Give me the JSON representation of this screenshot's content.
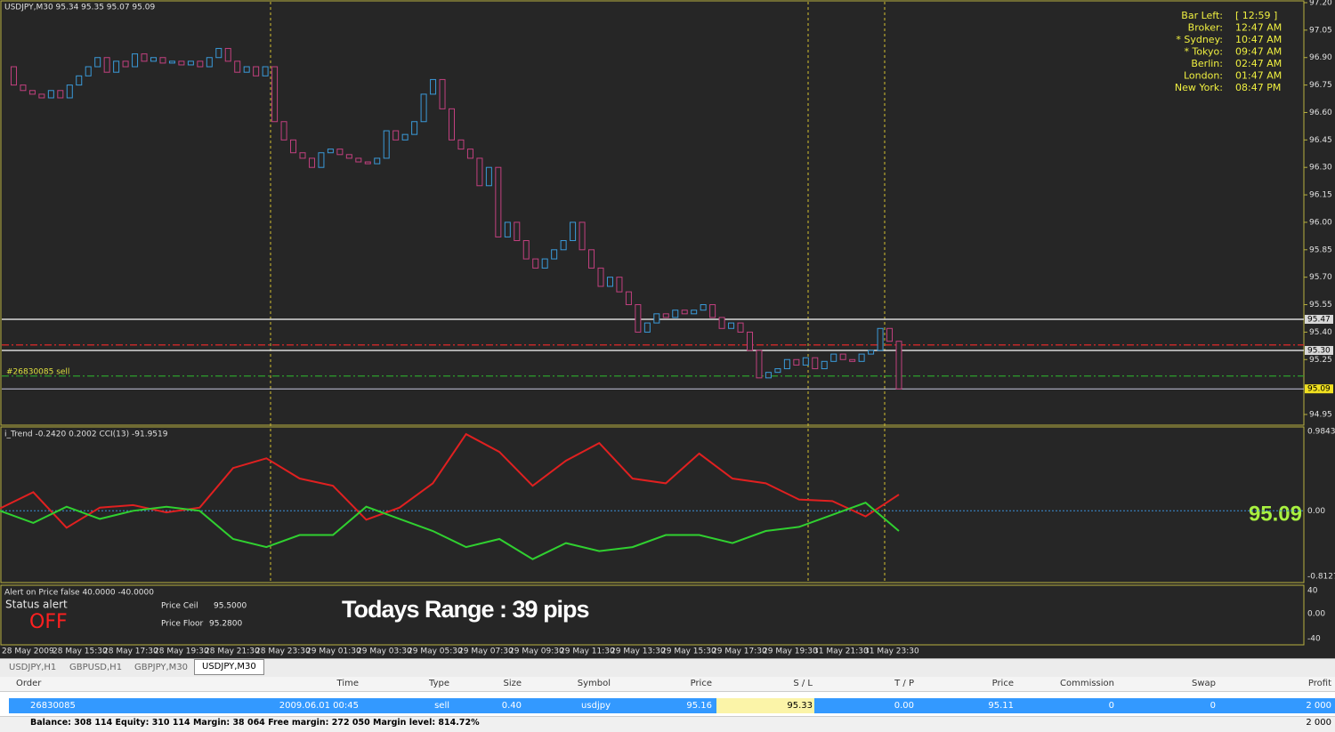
{
  "main_chart": {
    "header": "USDJPY,M30  95.34 95.35 95.07 95.09",
    "order_label": "#26830085 sell",
    "ylim": [
      94.9,
      97.2
    ],
    "price_ticks": [
      {
        "value": 97.2,
        "label": "97.20"
      },
      {
        "value": 97.05,
        "label": "97.05"
      },
      {
        "value": 96.9,
        "label": "96.90"
      },
      {
        "value": 96.75,
        "label": "96.75"
      },
      {
        "value": 96.6,
        "label": "96.60"
      },
      {
        "value": 96.45,
        "label": "96.45"
      },
      {
        "value": 96.3,
        "label": "96.30"
      },
      {
        "value": 96.15,
        "label": "96.15"
      },
      {
        "value": 96.0,
        "label": "96.00"
      },
      {
        "value": 95.85,
        "label": "95.85"
      },
      {
        "value": 95.7,
        "label": "95.70"
      },
      {
        "value": 95.55,
        "label": "95.55"
      },
      {
        "value": 95.4,
        "label": "95.40"
      },
      {
        "value": 95.25,
        "label": "95.25"
      },
      {
        "value": 94.95,
        "label": "94.95"
      }
    ],
    "closes": [
      96.85,
      96.75,
      96.72,
      96.7,
      96.68,
      96.72,
      96.68,
      96.75,
      96.8,
      96.85,
      96.9,
      96.82,
      96.88,
      96.85,
      96.92,
      96.88,
      96.9,
      96.87,
      96.88,
      96.86,
      96.88,
      96.85,
      96.9,
      96.95,
      96.88,
      96.82,
      96.85,
      96.8,
      96.85,
      96.55,
      96.45,
      96.38,
      96.35,
      96.3,
      96.38,
      96.4,
      96.37,
      96.35,
      96.33,
      96.32,
      96.35,
      96.5,
      96.45,
      96.48,
      96.55,
      96.7,
      96.78,
      96.62,
      96.45,
      96.4,
      96.35,
      96.2,
      96.3,
      95.92,
      96.0,
      95.9,
      95.8,
      95.75,
      95.8,
      95.85,
      95.9,
      96.0,
      95.85,
      95.75,
      95.65,
      95.7,
      95.62,
      95.55,
      95.4,
      95.45,
      95.5,
      95.48,
      95.52,
      95.5,
      95.52,
      95.55,
      95.48,
      95.42,
      95.45,
      95.4,
      95.3,
      95.15,
      95.18,
      95.2,
      95.25,
      95.22,
      95.26,
      95.2,
      95.24,
      95.28,
      95.25,
      95.24,
      95.28,
      95.3,
      95.42,
      95.35,
      95.09
    ],
    "bull_color": "#3a9ad9",
    "bear_color": "#c2407f",
    "levels": [
      {
        "value": 95.47,
        "label": "95.47",
        "color": "#d8d8d8"
      },
      {
        "value": 95.3,
        "label": "95.30",
        "color": "#d8d8d8"
      },
      {
        "value": 95.09,
        "label": "95.09",
        "color": "#c8c8e0"
      }
    ],
    "order_lines": [
      {
        "value": 95.33,
        "color": "#d02828"
      },
      {
        "value": 95.16,
        "color": "#2ca02c"
      }
    ],
    "clock": [
      [
        "Bar Left:",
        "[ 12:59 ]"
      ],
      [
        "Broker:",
        "12:47 AM"
      ],
      [
        "* Sydney:",
        "10:47 AM"
      ],
      [
        "* Tokyo:",
        "09:47 AM"
      ],
      [
        "Berlin:",
        "02:47 AM"
      ],
      [
        "London:",
        "01:47 AM"
      ],
      [
        "New York:",
        "08:47 PM"
      ]
    ]
  },
  "indicator": {
    "header": "i_Trend -0.2420 0.2002  CCI(13) -91.9519",
    "ylim": [
      -0.8127,
      0.9843
    ],
    "ticks": [
      {
        "value": 0.9843,
        "label": "0.9843"
      },
      {
        "value": 0,
        "label": "0.00"
      },
      {
        "value": -0.8127,
        "label": "-0.8127"
      }
    ],
    "big_price": "95.09",
    "series": [
      {
        "color": "#e02020",
        "values": [
          0.03,
          0.23,
          -0.21,
          0.04,
          0.07,
          -0.02,
          0.04,
          0.53,
          0.65,
          0.4,
          0.31,
          -0.11,
          0.04,
          0.34,
          0.95,
          0.73,
          0.31,
          0.62,
          0.84,
          0.4,
          0.34,
          0.71,
          0.4,
          0.34,
          0.14,
          0.12,
          -0.07,
          0.2
        ]
      },
      {
        "color": "#30d030",
        "values": [
          0.0,
          -0.15,
          0.05,
          -0.1,
          0.0,
          0.05,
          0.0,
          -0.35,
          -0.45,
          -0.3,
          -0.3,
          0.05,
          -0.1,
          -0.25,
          -0.45,
          -0.35,
          -0.6,
          -0.4,
          -0.5,
          -0.45,
          -0.3,
          -0.3,
          -0.4,
          -0.25,
          -0.2,
          -0.05,
          0.1,
          -0.25
        ]
      }
    ]
  },
  "alert_pane": {
    "header": "Alert on Price false  40.0000 -40.0000",
    "status_label": "Status alert",
    "status": "OFF",
    "ceil_label": "Price Ceil",
    "ceil": "95.5000",
    "floor_label": "Price Floor",
    "floor": "95.2800",
    "range": "Todays Range : 39 pips",
    "ticks": [
      "40",
      "0.00",
      "-40"
    ]
  },
  "time_axis": [
    "28 May 2009",
    "28 May 15:30",
    "28 May 17:30",
    "28 May 19:30",
    "28 May 21:30",
    "28 May 23:30",
    "29 May 01:30",
    "29 May 03:30",
    "29 May 05:30",
    "29 May 07:30",
    "29 May 09:30",
    "29 May 11:30",
    "29 May 13:30",
    "29 May 15:30",
    "29 May 17:30",
    "29 May 19:30",
    "31 May 21:30",
    "31 May 23:30"
  ],
  "tabs": [
    "USDJPY,H1",
    "GBPUSD,H1",
    "GBPJPY,M30",
    "USDJPY,M30"
  ],
  "table": {
    "headers": [
      "Order",
      "Time",
      "Type",
      "Size",
      "Symbol",
      "Price",
      "S / L",
      "T / P",
      "Price",
      "Commission",
      "Swap",
      "Profit"
    ],
    "row": [
      "26830085",
      "2009.06.01 00:45",
      "sell",
      "0.40",
      "usdjpy",
      "95.16",
      "95.33",
      "0.00",
      "95.11",
      "0",
      "0",
      "2 000"
    ],
    "footer": "Balance: 308 114  Equity: 310 114  Margin: 38 064  Free margin: 272 050  Margin level: 814.72%",
    "footer_profit": "2 000"
  }
}
